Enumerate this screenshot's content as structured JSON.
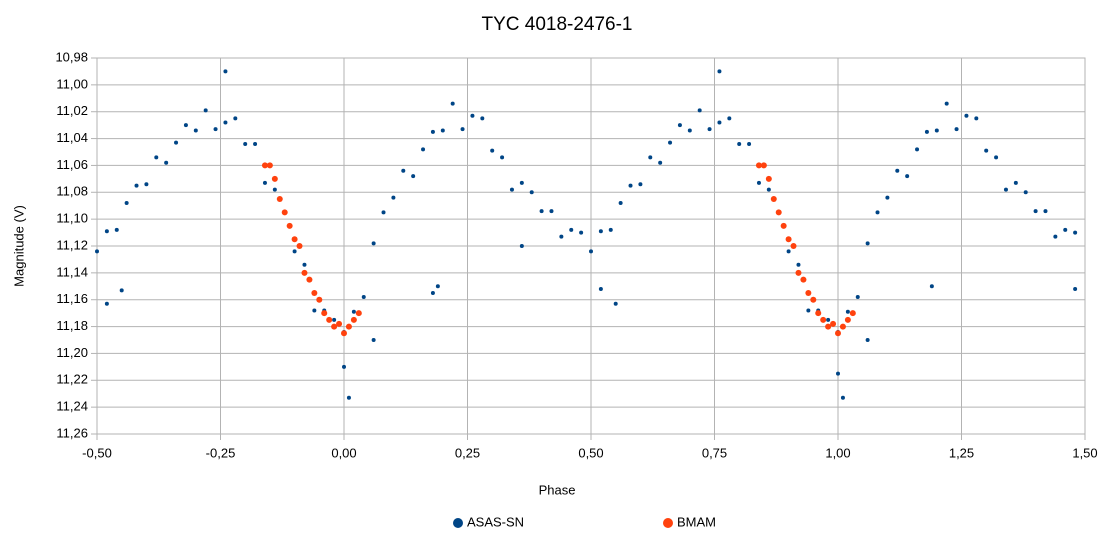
{
  "chart_data": {
    "type": "scatter",
    "title": "TYC 4018-2476-1",
    "xlabel": "Phase",
    "ylabel": "Magnitude (V)",
    "xlim": [
      -0.5,
      1.5
    ],
    "ylim": [
      10.98,
      11.26
    ],
    "y_inverted": true,
    "grid": true,
    "legend": "bottom",
    "xticks": [
      {
        "value": -0.5,
        "label": "-0,50"
      },
      {
        "value": -0.25,
        "label": "-0,25"
      },
      {
        "value": 0,
        "label": "0,00"
      },
      {
        "value": 0.25,
        "label": "0,25"
      },
      {
        "value": 0.5,
        "label": "0,50"
      },
      {
        "value": 0.75,
        "label": "0,75"
      },
      {
        "value": 1,
        "label": "1,00"
      },
      {
        "value": 1.25,
        "label": "1,25"
      },
      {
        "value": 1.5,
        "label": "1,50"
      }
    ],
    "yticks": [
      {
        "value": 10.98,
        "label": "10,98"
      },
      {
        "value": 11.0,
        "label": "11,00"
      },
      {
        "value": 11.02,
        "label": "11,02"
      },
      {
        "value": 11.04,
        "label": "11,04"
      },
      {
        "value": 11.06,
        "label": "11,06"
      },
      {
        "value": 11.08,
        "label": "11,08"
      },
      {
        "value": 11.1,
        "label": "11,10"
      },
      {
        "value": 11.12,
        "label": "11,12"
      },
      {
        "value": 11.14,
        "label": "11,14"
      },
      {
        "value": 11.16,
        "label": "11,16"
      },
      {
        "value": 11.18,
        "label": "11,18"
      },
      {
        "value": 11.2,
        "label": "11,20"
      },
      {
        "value": 11.22,
        "label": "11,22"
      },
      {
        "value": 11.24,
        "label": "11,24"
      },
      {
        "value": 11.26,
        "label": "11,26"
      }
    ],
    "series": [
      {
        "name": "ASAS-SN",
        "color": "#004586",
        "x": [
          -0.5,
          -0.48,
          -0.46,
          -0.44,
          -0.42,
          -0.4,
          -0.38,
          -0.36,
          -0.34,
          -0.32,
          -0.3,
          -0.28,
          -0.26,
          -0.24,
          -0.22,
          -0.2,
          -0.18,
          -0.16,
          -0.14,
          -0.12,
          -0.1,
          -0.08,
          -0.06,
          -0.04,
          -0.02,
          0,
          0.02,
          0.04,
          0.06,
          0.08,
          0.1,
          0.12,
          0.14,
          0.16,
          0.18,
          0.2,
          0.22,
          0.24,
          0.26,
          0.28,
          0.3,
          0.32,
          0.34,
          0.36,
          0.38,
          0.4,
          0.42,
          0.44,
          0.46,
          0.48,
          0.5,
          0.52,
          0.54,
          0.56,
          0.58,
          0.6,
          0.62,
          0.64,
          0.66,
          0.68,
          0.7,
          0.72,
          0.74,
          0.76,
          0.78,
          0.8,
          0.82,
          0.84,
          0.86,
          0.88,
          0.9,
          0.92,
          0.94,
          0.96,
          0.98,
          1,
          1.02,
          1.04,
          1.06,
          1.08,
          1.1,
          1.12,
          1.14,
          1.16,
          1.18,
          1.2,
          1.22,
          1.24,
          1.26,
          1.28,
          1.3,
          1.32,
          1.34,
          1.36,
          1.38,
          1.4,
          1.42,
          1.44,
          1.46,
          1.48,
          -0.48,
          -0.24,
          -0.45,
          0.19,
          0.18,
          0.36,
          0.76,
          0.01,
          1.01,
          0.55,
          0.52,
          1.19,
          1.48,
          1.06,
          0.06,
          0,
          1
        ],
        "values": [
          11.124,
          11.109,
          11.108,
          11.088,
          11.075,
          11.074,
          11.054,
          11.058,
          11.043,
          11.03,
          11.034,
          11.019,
          11.033,
          11.028,
          11.025,
          11.044,
          11.044,
          11.073,
          11.078,
          11.095,
          11.124,
          11.134,
          11.168,
          11.168,
          11.175,
          11.184,
          11.169,
          11.158,
          11.118,
          11.095,
          11.084,
          11.064,
          11.068,
          11.048,
          11.035,
          11.034,
          11.014,
          11.033,
          11.023,
          11.025,
          11.049,
          11.054,
          11.078,
          11.073,
          11.08,
          11.094,
          11.094,
          11.113,
          11.108,
          11.11,
          11.124,
          11.109,
          11.108,
          11.088,
          11.075,
          11.074,
          11.054,
          11.058,
          11.043,
          11.03,
          11.034,
          11.019,
          11.033,
          11.028,
          11.025,
          11.044,
          11.044,
          11.073,
          11.078,
          11.095,
          11.124,
          11.134,
          11.168,
          11.168,
          11.175,
          11.184,
          11.169,
          11.158,
          11.118,
          11.095,
          11.084,
          11.064,
          11.068,
          11.048,
          11.035,
          11.034,
          11.014,
          11.033,
          11.023,
          11.025,
          11.049,
          11.054,
          11.078,
          11.073,
          11.08,
          11.094,
          11.094,
          11.113,
          11.108,
          11.11,
          11.163,
          10.99,
          11.153,
          11.15,
          11.155,
          11.12,
          10.99,
          11.233,
          11.233,
          11.163,
          11.152,
          11.15,
          11.152,
          11.19,
          11.19,
          11.21,
          11.215
        ]
      },
      {
        "name": "BMAM",
        "color": "#ff420e",
        "x": [
          -0.16,
          -0.15,
          -0.14,
          -0.13,
          -0.12,
          -0.11,
          -0.1,
          -0.09,
          -0.08,
          -0.07,
          -0.06,
          -0.05,
          -0.04,
          -0.03,
          -0.02,
          -0.01,
          0,
          0.01,
          0.02,
          0.03,
          0.84,
          0.85,
          0.86,
          0.87,
          0.88,
          0.89,
          0.9,
          0.91,
          0.92,
          0.93,
          0.94,
          0.95,
          0.96,
          0.97,
          0.98,
          0.99,
          1,
          1.01,
          1.02,
          1.03
        ],
        "values": [
          11.06,
          11.06,
          11.07,
          11.085,
          11.095,
          11.105,
          11.115,
          11.12,
          11.14,
          11.145,
          11.155,
          11.16,
          11.17,
          11.175,
          11.18,
          11.178,
          11.185,
          11.18,
          11.175,
          11.17,
          11.06,
          11.06,
          11.07,
          11.085,
          11.095,
          11.105,
          11.115,
          11.12,
          11.14,
          11.145,
          11.155,
          11.16,
          11.17,
          11.175,
          11.18,
          11.178,
          11.185,
          11.18,
          11.175,
          11.17
        ]
      }
    ]
  }
}
